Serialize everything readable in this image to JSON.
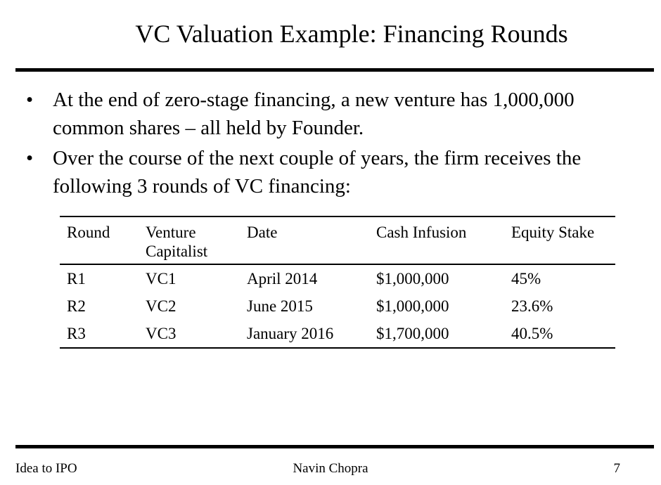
{
  "title": "VC Valuation Example: Financing Rounds",
  "bullets": [
    "At the end of zero-stage financing, a new venture has 1,000,000 common shares – all held by Founder.",
    "Over the course of the next couple of years, the firm receives the following 3 rounds of VC financing:"
  ],
  "bullet_symbol": "•",
  "table": {
    "headers": [
      "Round",
      "Venture Capitalist",
      "Date",
      "Cash Infusion",
      "Equity Stake"
    ],
    "rows": [
      [
        "R1",
        "VC1",
        "April 2014",
        "$1,000,000",
        "45%"
      ],
      [
        "R2",
        "VC2",
        "June 2015",
        "$1,000,000",
        "23.6%"
      ],
      [
        "R3",
        "VC3",
        "January 2016",
        "$1,700,000",
        "40.5%"
      ]
    ]
  },
  "footer": {
    "left": "Idea to IPO",
    "center": "Navin Chopra",
    "page_number": "7"
  }
}
